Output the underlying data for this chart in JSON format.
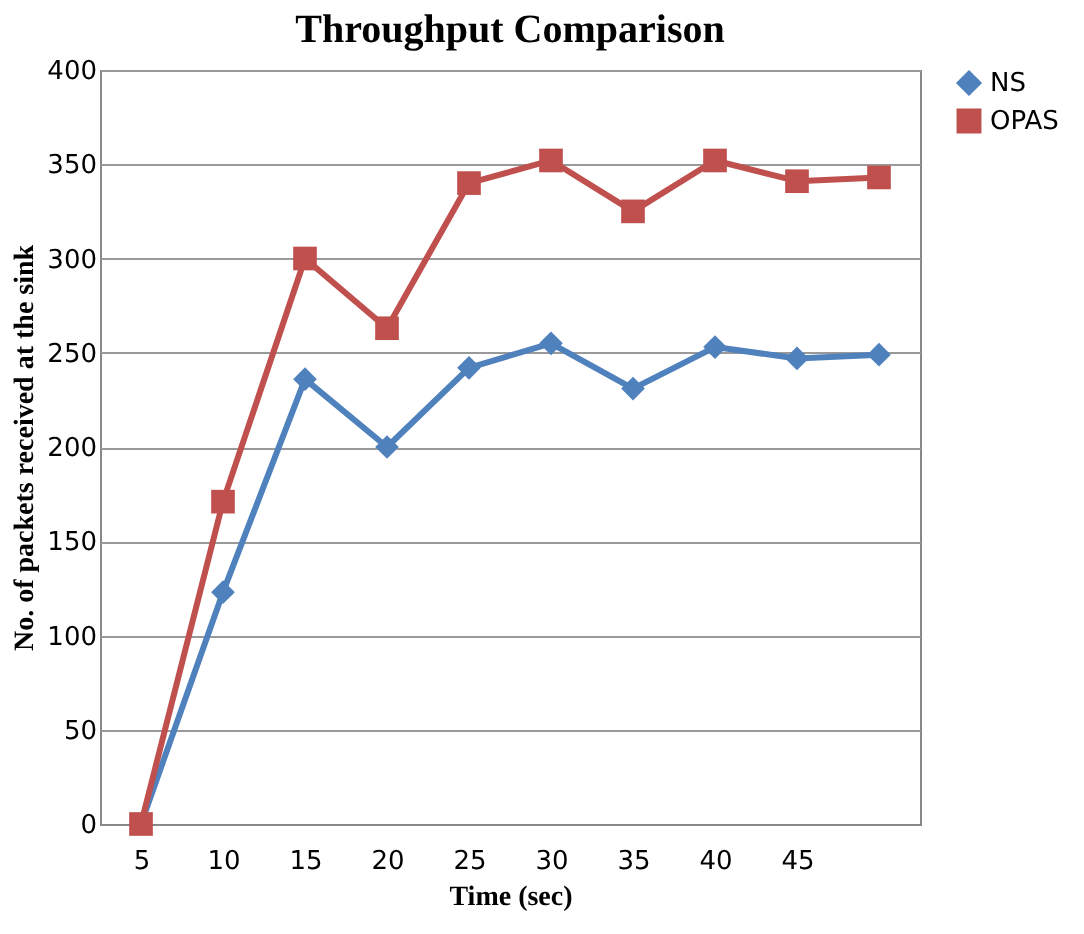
{
  "chart_data": {
    "type": "line",
    "title": "Throughput Comparison",
    "xlabel": "Time (sec)",
    "ylabel": "No. of packets received at the sink",
    "categories": [
      "5",
      "10",
      "15",
      "20",
      "25",
      "30",
      "35",
      "40",
      "45",
      null
    ],
    "series": [
      {
        "name": "NS",
        "color": "#4f81bd",
        "marker": "diamond",
        "values": [
          0,
          123,
          236,
          200,
          242,
          255,
          231,
          253,
          247,
          249
        ]
      },
      {
        "name": "OPAS",
        "color": "#c0504d",
        "marker": "square",
        "values": [
          0,
          171,
          300,
          263,
          340,
          352,
          325,
          352,
          341,
          343
        ]
      }
    ],
    "ylim": [
      0,
      400
    ],
    "yticks": [
      0,
      50,
      100,
      150,
      200,
      250,
      300,
      350,
      400
    ],
    "grid": "y",
    "legend": "right",
    "line_style": "solid"
  }
}
